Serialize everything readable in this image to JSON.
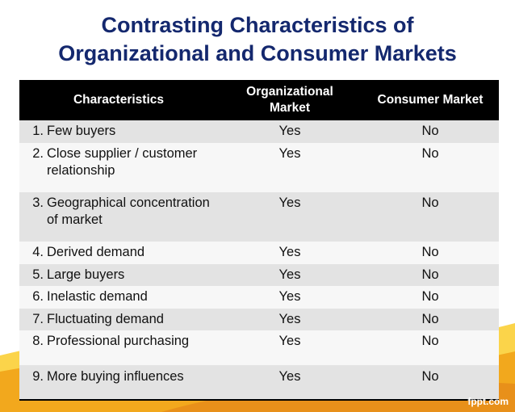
{
  "title": {
    "line1": "Contrasting Characteristics of",
    "line2": "Organizational and Consumer Markets"
  },
  "table": {
    "headers": [
      "Characteristics",
      "Organizational Market",
      "Consumer Market"
    ],
    "rows": [
      {
        "num": "1.",
        "text": "Few buyers",
        "org": "Yes",
        "consumer": "No"
      },
      {
        "num": "2.",
        "text": "Close supplier / customer relationship",
        "org": "Yes",
        "consumer": "No"
      },
      {
        "num": "3.",
        "text": "Geographical concentration of market",
        "org": "Yes",
        "consumer": "No"
      },
      {
        "num": "4.",
        "text": "Derived demand",
        "org": "Yes",
        "consumer": "No"
      },
      {
        "num": "5.",
        "text": "Large buyers",
        "org": "Yes",
        "consumer": "No"
      },
      {
        "num": "6.",
        "text": "Inelastic demand",
        "org": "Yes",
        "consumer": "No"
      },
      {
        "num": "7.",
        "text": "Fluctuating demand",
        "org": "Yes",
        "consumer": "No"
      },
      {
        "num": "8.",
        "text": "Professional purchasing",
        "org": "Yes",
        "consumer": "No"
      },
      {
        "num": "9.",
        "text": "More buying influences",
        "org": "Yes",
        "consumer": "No"
      }
    ]
  },
  "brand": "fppt.com",
  "colors": {
    "title": "#14286e",
    "header_bg": "#000000",
    "row_gray": "#e3e3e3",
    "row_white": "#f7f7f7",
    "wave_orange": "#f2a81d",
    "wave_yellow": "#fbd44a"
  }
}
